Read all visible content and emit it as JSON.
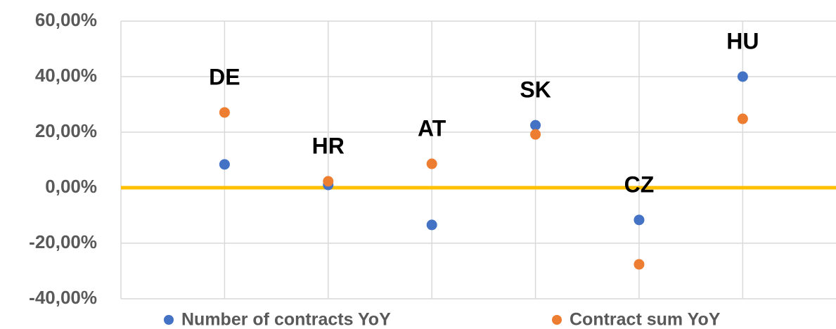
{
  "chart_data": {
    "type": "scatter",
    "x": [
      1,
      2,
      3,
      4,
      5,
      6
    ],
    "labels": [
      "DE",
      "HR",
      "AT",
      "SK",
      "CZ",
      "HU"
    ],
    "series": [
      {
        "name": "Number of contracts YoY",
        "color": "#4472c4",
        "values": [
          8.4,
          1,
          -13.4,
          22.5,
          -11.6,
          40
        ]
      },
      {
        "name": "Contract sum YoY",
        "color": "#ed7d31",
        "values": [
          27.1,
          2.3,
          8.6,
          19.2,
          -27.6,
          24.8
        ]
      }
    ],
    "xlim": [
      0,
      6.9
    ],
    "xticks": [
      0,
      1,
      2,
      3,
      4,
      5,
      6
    ],
    "ylim": [
      -40,
      60
    ],
    "yticks": [
      {
        "value": -40,
        "label": "-40,00%"
      },
      {
        "value": -20,
        "label": "-20,00%"
      },
      {
        "value": 0,
        "label": "0,00%"
      },
      {
        "value": 20,
        "label": "20,00%"
      },
      {
        "value": 40,
        "label": "40,00%"
      },
      {
        "value": 60,
        "label": "60,00%"
      }
    ],
    "zero_line_color": "#ffc000",
    "grid": true,
    "legend": "bottom"
  }
}
